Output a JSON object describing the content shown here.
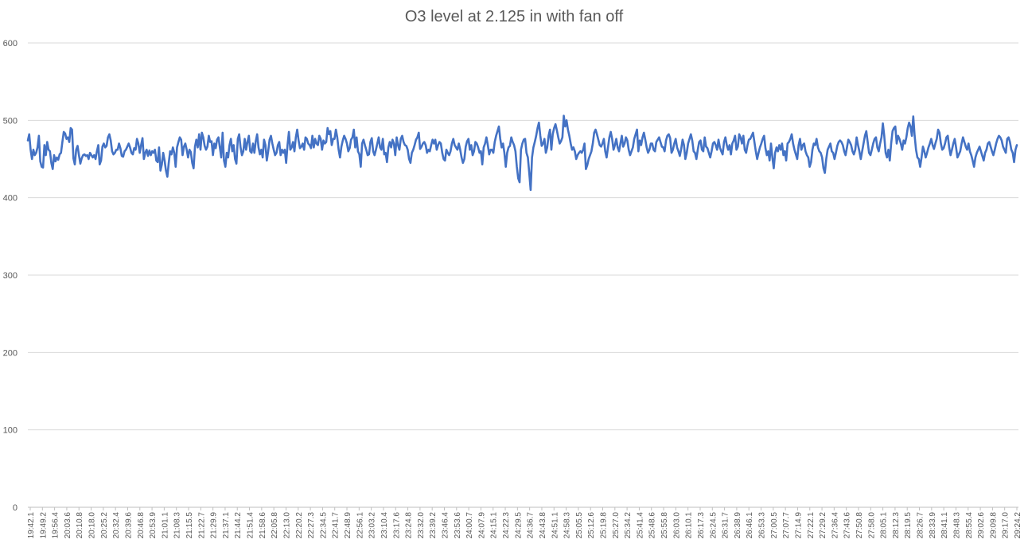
{
  "chart_data": {
    "type": "line",
    "title": "O3 level at 2.125 in with fan off",
    "xlabel": "",
    "ylabel": "",
    "ylim": [
      0,
      600
    ],
    "yticks": [
      "0",
      "100",
      "200",
      "300",
      "400",
      "500",
      "600"
    ],
    "grid": true,
    "legend": "none",
    "line_color": "#4472C4",
    "x_tick_labels": [
      "19:42.1",
      "19:49.2",
      "19:56.4",
      "20:03.6",
      "20:10.8",
      "20:18.0",
      "20:25.2",
      "20:32.4",
      "20:39.6",
      "20:46.8",
      "20:53.9",
      "21:01.1",
      "21:08.3",
      "21:15.5",
      "21:22.7",
      "21:29.9",
      "21:37.1",
      "21:44.2",
      "21:51.4",
      "21:58.6",
      "22:05.8",
      "22:13.0",
      "22:20.2",
      "22:27.3",
      "22:34.5",
      "22:41.7",
      "22:48.9",
      "22:56.1",
      "23:03.2",
      "23:10.4",
      "23:17.6",
      "23:24.8",
      "23:32.0",
      "23:39.2",
      "23:46.4",
      "23:53.6",
      "24:00.7",
      "24:07.9",
      "24:15.1",
      "24:22.3",
      "24:29.5",
      "24:36.7",
      "24:43.8",
      "24:51.1",
      "24:58.3",
      "25:05.5",
      "25:12.6",
      "25:19.8",
      "25:27.0",
      "25:34.2",
      "25:41.4",
      "25:48.6",
      "25:55.8",
      "26:03.0",
      "26:10.1",
      "26:17.3",
      "26:24.5",
      "26:31.7",
      "26:38.9",
      "26:46.1",
      "26:53.3",
      "27:00.5",
      "27:07.7",
      "27:14.9",
      "27:22.1",
      "27:29.2",
      "27:36.4",
      "27:43.6",
      "27:50.8",
      "27:58.0",
      "28:05.1",
      "28:12.3",
      "28:19.5",
      "28:26.7",
      "28:33.9",
      "28:41.1",
      "28:48.3",
      "28:55.4",
      "29:02.6",
      "29:09.8",
      "29:17.0",
      "29:24.2"
    ],
    "values": [
      474,
      482,
      462,
      450,
      462,
      455,
      458,
      465,
      480,
      447,
      440,
      439,
      468,
      455,
      472,
      462,
      460,
      445,
      437,
      455,
      447,
      452,
      449,
      456,
      458,
      472,
      485,
      483,
      476,
      478,
      472,
      490,
      488,
      451,
      443,
      462,
      467,
      455,
      444,
      451,
      455,
      456,
      454,
      455,
      450,
      458,
      455,
      452,
      455,
      450,
      460,
      468,
      443,
      448,
      466,
      470,
      465,
      467,
      478,
      482,
      474,
      460,
      456,
      458,
      462,
      462,
      470,
      464,
      454,
      453,
      460,
      462,
      466,
      470,
      465,
      458,
      456,
      464,
      462,
      476,
      470,
      458,
      468,
      477,
      450,
      458,
      462,
      454,
      461,
      455,
      460,
      458,
      462,
      448,
      446,
      465,
      435,
      443,
      458,
      448,
      435,
      427,
      445,
      460,
      456,
      465,
      458,
      440,
      465,
      472,
      478,
      475,
      455,
      466,
      470,
      462,
      452,
      462,
      459,
      445,
      438,
      466,
      475,
      465,
      482,
      462,
      484,
      478,
      467,
      462,
      466,
      480,
      472,
      473,
      455,
      470,
      464,
      475,
      478,
      465,
      452,
      484,
      448,
      440,
      458,
      452,
      468,
      476,
      460,
      468,
      450,
      444,
      476,
      482,
      465,
      455,
      460,
      476,
      462,
      472,
      480,
      460,
      458,
      470,
      458,
      473,
      482,
      465,
      456,
      462,
      452,
      475,
      468,
      448,
      460,
      475,
      480,
      470,
      462,
      455,
      458,
      468,
      472,
      455,
      462,
      458,
      462,
      445,
      468,
      485,
      462,
      465,
      472,
      460,
      478,
      488,
      474,
      464,
      466,
      470,
      462,
      478,
      476,
      470,
      468,
      464,
      480,
      465,
      476,
      470,
      468,
      480,
      476,
      462,
      474,
      470,
      472,
      490,
      482,
      486,
      468,
      476,
      476,
      488,
      478,
      462,
      452,
      466,
      474,
      480,
      476,
      470,
      460,
      464,
      475,
      478,
      488,
      465,
      478,
      460,
      456,
      440,
      470,
      475,
      468,
      462,
      455,
      456,
      472,
      477,
      460,
      455,
      462,
      470,
      478,
      465,
      462,
      476,
      456,
      458,
      446,
      465,
      472,
      465,
      475,
      470,
      455,
      478,
      468,
      462,
      476,
      480,
      472,
      468,
      467,
      462,
      450,
      445,
      458,
      462,
      468,
      475,
      478,
      484,
      463,
      466,
      470,
      472,
      468,
      458,
      462,
      460,
      468,
      475,
      470,
      475,
      462,
      468,
      472,
      470,
      458,
      450,
      448,
      462,
      458,
      455,
      460,
      470,
      476,
      468,
      465,
      462,
      470,
      462,
      452,
      445,
      450,
      466,
      473,
      476,
      462,
      468,
      455,
      460,
      472,
      470,
      465,
      458,
      460,
      443,
      465,
      470,
      478,
      468,
      456,
      462,
      462,
      458,
      472,
      480,
      486,
      492,
      476,
      465,
      470,
      458,
      440,
      458,
      465,
      467,
      478,
      472,
      468,
      460,
      440,
      425,
      420,
      462,
      470,
      475,
      476,
      458,
      452,
      432,
      410,
      452,
      465,
      472,
      480,
      490,
      497,
      480,
      467,
      470,
      476,
      458,
      465,
      480,
      488,
      462,
      482,
      490,
      495,
      487,
      478,
      470,
      473,
      478,
      506,
      492,
      500,
      488,
      480,
      470,
      462,
      465,
      460,
      450,
      455,
      458,
      460,
      458,
      462,
      470,
      437,
      442,
      450,
      455,
      460,
      470,
      484,
      488,
      482,
      475,
      468,
      466,
      470,
      476,
      460,
      452,
      465,
      478,
      485,
      476,
      462,
      468,
      476,
      465,
      460,
      470,
      480,
      466,
      470,
      478,
      474,
      462,
      455,
      460,
      465,
      476,
      482,
      488,
      460,
      474,
      468,
      478,
      484,
      475,
      465,
      458,
      462,
      470,
      470,
      462,
      460,
      472,
      475,
      478,
      472,
      466,
      465,
      460,
      474,
      480,
      482,
      477,
      458,
      462,
      470,
      476,
      465,
      460,
      454,
      463,
      475,
      468,
      450,
      458,
      470,
      476,
      482,
      474,
      460,
      458,
      450,
      462,
      472,
      474,
      462,
      460,
      478,
      466,
      464,
      458,
      452,
      460,
      470,
      472,
      468,
      462,
      475,
      465,
      460,
      456,
      472,
      478,
      468,
      462,
      468,
      456,
      470,
      474,
      480,
      462,
      466,
      482,
      478,
      470,
      480,
      462,
      458,
      468,
      475,
      476,
      480,
      484,
      472,
      460,
      450,
      458,
      465,
      470,
      476,
      480,
      464,
      455,
      460,
      448,
      470,
      452,
      438,
      458,
      465,
      460,
      468,
      462,
      470,
      455,
      460,
      448,
      470,
      472,
      476,
      482,
      470,
      462,
      456,
      450,
      468,
      476,
      462,
      468,
      470,
      460,
      455,
      452,
      440,
      446,
      462,
      470,
      468,
      476,
      465,
      460,
      458,
      452,
      438,
      432,
      450,
      462,
      466,
      470,
      460,
      458,
      450,
      458,
      467,
      472,
      474,
      472,
      468,
      460,
      455,
      465,
      475,
      472,
      468,
      460,
      456,
      462,
      478,
      468,
      460,
      450,
      460,
      470,
      480,
      486,
      472,
      458,
      455,
      462,
      470,
      476,
      478,
      465,
      460,
      470,
      478,
      496,
      480,
      458,
      452,
      462,
      448,
      470,
      486,
      490,
      492,
      470,
      480,
      476,
      470,
      462,
      474,
      470,
      478,
      490,
      497,
      492,
      480,
      505,
      480,
      462,
      452,
      450,
      440,
      452,
      466,
      460,
      452,
      458,
      465,
      470,
      476,
      468,
      463,
      470,
      476,
      488,
      484,
      470,
      462,
      464,
      470,
      478,
      480,
      465,
      455,
      462,
      470,
      476,
      465,
      452,
      456,
      460,
      470,
      478,
      472,
      466,
      462,
      470,
      460,
      455,
      448,
      440,
      452,
      458,
      462,
      466,
      460,
      454,
      448,
      458,
      462,
      470,
      472,
      466,
      460,
      455,
      462,
      470,
      476,
      480,
      478,
      474,
      466,
      462,
      458,
      476,
      478,
      472,
      462,
      458,
      446,
      462,
      468
    ]
  }
}
